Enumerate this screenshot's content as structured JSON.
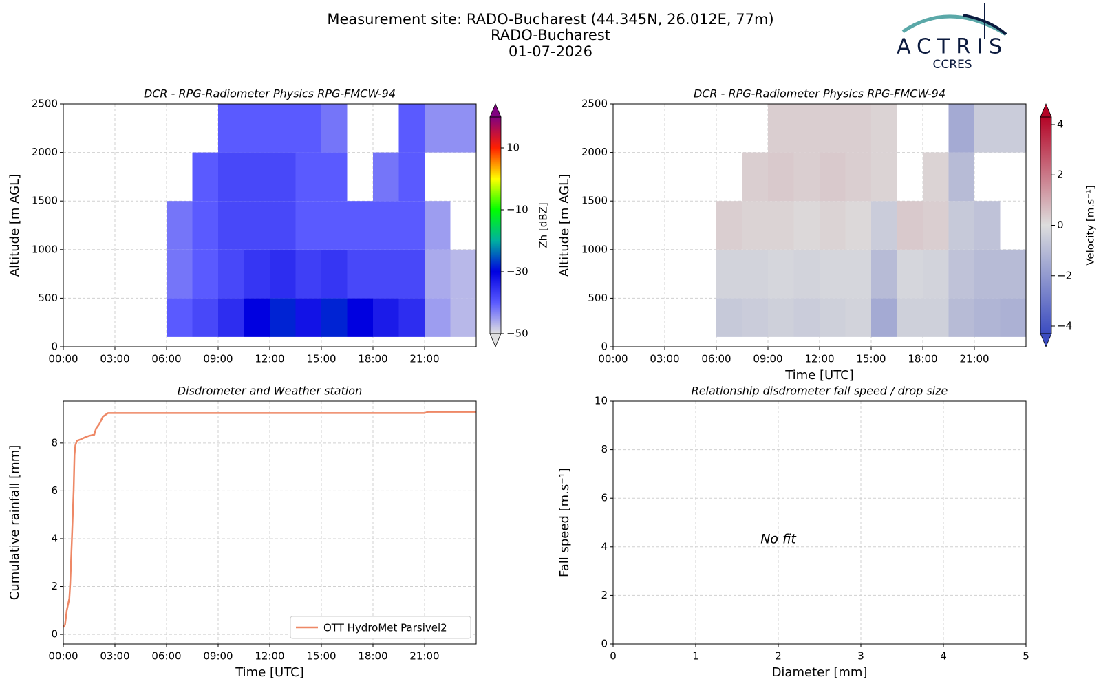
{
  "figure": {
    "title_lines": [
      "Measurement site: RADO-Bucharest (44.345N, 26.012E, 77m)",
      "RADO-Bucharest",
      "01-07-2026"
    ],
    "logo": "ACTRIS",
    "logo_sub": "CCRES"
  },
  "chart_data": [
    {
      "type": "heatmap",
      "title": "DCR - RPG-Radiometer Physics RPG-FMCW-94",
      "y_label": "Altitude [m AGL]",
      "x_edges": [
        6,
        7.5,
        9,
        10.5,
        12,
        13.5,
        15,
        16.5,
        18,
        19.5,
        21,
        22.5,
        24
      ],
      "y_edges": [
        100,
        500,
        1000,
        1500,
        2000,
        2500
      ],
      "values": [
        [
          -40,
          -38,
          -35,
          -30,
          -28,
          -32,
          -28,
          -30,
          -33,
          -35,
          -45,
          -47
        ],
        [
          -42,
          -40,
          -38,
          -36,
          -35,
          -37,
          -36,
          -38,
          -38,
          -38,
          -46,
          -47
        ],
        [
          -42,
          -40,
          -38,
          -38,
          -38,
          -40,
          -40,
          -40,
          -40,
          -40,
          -45,
          null
        ],
        [
          null,
          -40,
          -38,
          -38,
          -38,
          -40,
          -40,
          null,
          -42,
          -40,
          null,
          null
        ],
        [
          null,
          null,
          -40,
          -40,
          -40,
          -40,
          -42,
          null,
          null,
          -40,
          -44,
          -44
        ]
      ],
      "xlim": [
        0,
        24
      ],
      "ylim": [
        0,
        2500
      ],
      "xticks": [
        {
          "value": 0,
          "label": "00:00"
        },
        {
          "value": 3,
          "label": "03:00"
        },
        {
          "value": 6,
          "label": "06:00"
        },
        {
          "value": 9,
          "label": "09:00"
        },
        {
          "value": 12,
          "label": "12:00"
        },
        {
          "value": 15,
          "label": "15:00"
        },
        {
          "value": 18,
          "label": "18:00"
        },
        {
          "value": 21,
          "label": "21:00"
        }
      ],
      "yticks": [
        0,
        500,
        1000,
        1500,
        2000,
        2500
      ],
      "grid": true,
      "colorbar_label": "Zh [dBZ]",
      "clim": [
        -50,
        20
      ],
      "cticks": [
        {
          "value": -50,
          "label": "−50"
        },
        {
          "value": -30,
          "label": "−30"
        },
        {
          "value": -10,
          "label": "−10"
        },
        10
      ],
      "colors": [
        "#e0e0e0",
        "#5a5aff",
        "#0000e0",
        "#00b0a0",
        "#00ff00",
        "#ffff00",
        "#ff2000",
        "#800080"
      ]
    },
    {
      "type": "heatmap",
      "title": "DCR - RPG-Radiometer Physics RPG-FMCW-94",
      "y_label": "Altitude [m AGL]",
      "x_label": "Time [UTC]",
      "x_edges": [
        6,
        7.5,
        9,
        10.5,
        12,
        13.5,
        15,
        16.5,
        18,
        19.5,
        21,
        22.5,
        24
      ],
      "y_edges": [
        100,
        500,
        1000,
        1500,
        2000,
        2500
      ],
      "values": [
        [
          -0.6,
          -0.5,
          -0.4,
          -0.5,
          -0.4,
          -0.3,
          -1.5,
          -0.4,
          -0.4,
          -1.0,
          -1.2,
          -1.3
        ],
        [
          -0.3,
          -0.3,
          -0.2,
          -0.3,
          -0.2,
          -0.2,
          -1.0,
          -0.2,
          -0.3,
          -0.8,
          -1.0,
          -1.0
        ],
        [
          0.3,
          0.2,
          0.2,
          0.1,
          0.2,
          0.1,
          -0.5,
          0.4,
          0.3,
          -0.6,
          -0.8,
          null
        ],
        [
          null,
          0.3,
          0.4,
          0.3,
          0.4,
          0.3,
          0.2,
          null,
          0.2,
          -1.0,
          null,
          null
        ],
        [
          null,
          null,
          0.3,
          0.3,
          0.3,
          0.3,
          0.2,
          null,
          null,
          -1.5,
          -0.5,
          -0.5
        ]
      ],
      "xlim": [
        0,
        24
      ],
      "ylim": [
        0,
        2500
      ],
      "xticks": [
        {
          "value": 0,
          "label": "00:00"
        },
        {
          "value": 3,
          "label": "03:00"
        },
        {
          "value": 6,
          "label": "06:00"
        },
        {
          "value": 9,
          "label": "09:00"
        },
        {
          "value": 12,
          "label": "12:00"
        },
        {
          "value": 15,
          "label": "15:00"
        },
        {
          "value": 18,
          "label": "18:00"
        },
        {
          "value": 21,
          "label": "21:00"
        }
      ],
      "yticks": [
        0,
        500,
        1000,
        1500,
        2000,
        2500
      ],
      "grid": true,
      "colorbar_label": "Velocity [m.s⁻¹]",
      "clim": [
        -4.3,
        4.3
      ],
      "cticks": [
        {
          "value": -4,
          "label": "−4"
        },
        {
          "value": -2,
          "label": "−2"
        },
        0,
        2,
        4
      ],
      "colors": [
        "#3b4cc0",
        "#dddddd",
        "#b40426"
      ]
    },
    {
      "type": "line",
      "title": "Disdrometer and Weather station",
      "y_label": "Cumulative rainfall [mm]",
      "x_label": "Time [UTC]",
      "x": [
        0,
        0.1,
        0.2,
        0.35,
        0.4,
        0.5,
        0.6,
        0.65,
        0.7,
        0.8,
        1.0,
        1.3,
        1.5,
        1.8,
        1.9,
        2.1,
        2.3,
        2.6,
        21.0,
        21.2,
        24
      ],
      "series": [
        {
          "name": "OTT HydroMet Parsivel2",
          "color": "#ee8866",
          "values": [
            0.3,
            0.4,
            1.0,
            1.5,
            2.1,
            4.0,
            6.0,
            7.5,
            7.9,
            8.1,
            8.15,
            8.25,
            8.3,
            8.35,
            8.6,
            8.8,
            9.1,
            9.25,
            9.25,
            9.3,
            9.3
          ]
        }
      ],
      "xlim": [
        0,
        24
      ],
      "ylim": [
        -0.4,
        9.75
      ],
      "xticks": [
        {
          "value": 0,
          "label": "00:00"
        },
        {
          "value": 3,
          "label": "03:00"
        },
        {
          "value": 6,
          "label": "06:00"
        },
        {
          "value": 9,
          "label": "09:00"
        },
        {
          "value": 12,
          "label": "12:00"
        },
        {
          "value": 15,
          "label": "15:00"
        },
        {
          "value": 18,
          "label": "18:00"
        },
        {
          "value": 21,
          "label": "21:00"
        }
      ],
      "yticks": [
        0,
        2,
        4,
        6,
        8
      ],
      "grid": true,
      "legend": "lower right"
    },
    {
      "type": "scatter",
      "title": "Relationship disdrometer fall speed / drop size",
      "y_label": "Fall speed [m.s⁻¹]",
      "x_label": "Diameter [mm]",
      "annotation": "No fit",
      "xlim": [
        0,
        5
      ],
      "ylim": [
        0,
        10
      ],
      "xticks": [
        0,
        1,
        2,
        3,
        4,
        5
      ],
      "yticks": [
        0,
        2,
        4,
        6,
        8,
        10
      ],
      "grid": true
    }
  ]
}
